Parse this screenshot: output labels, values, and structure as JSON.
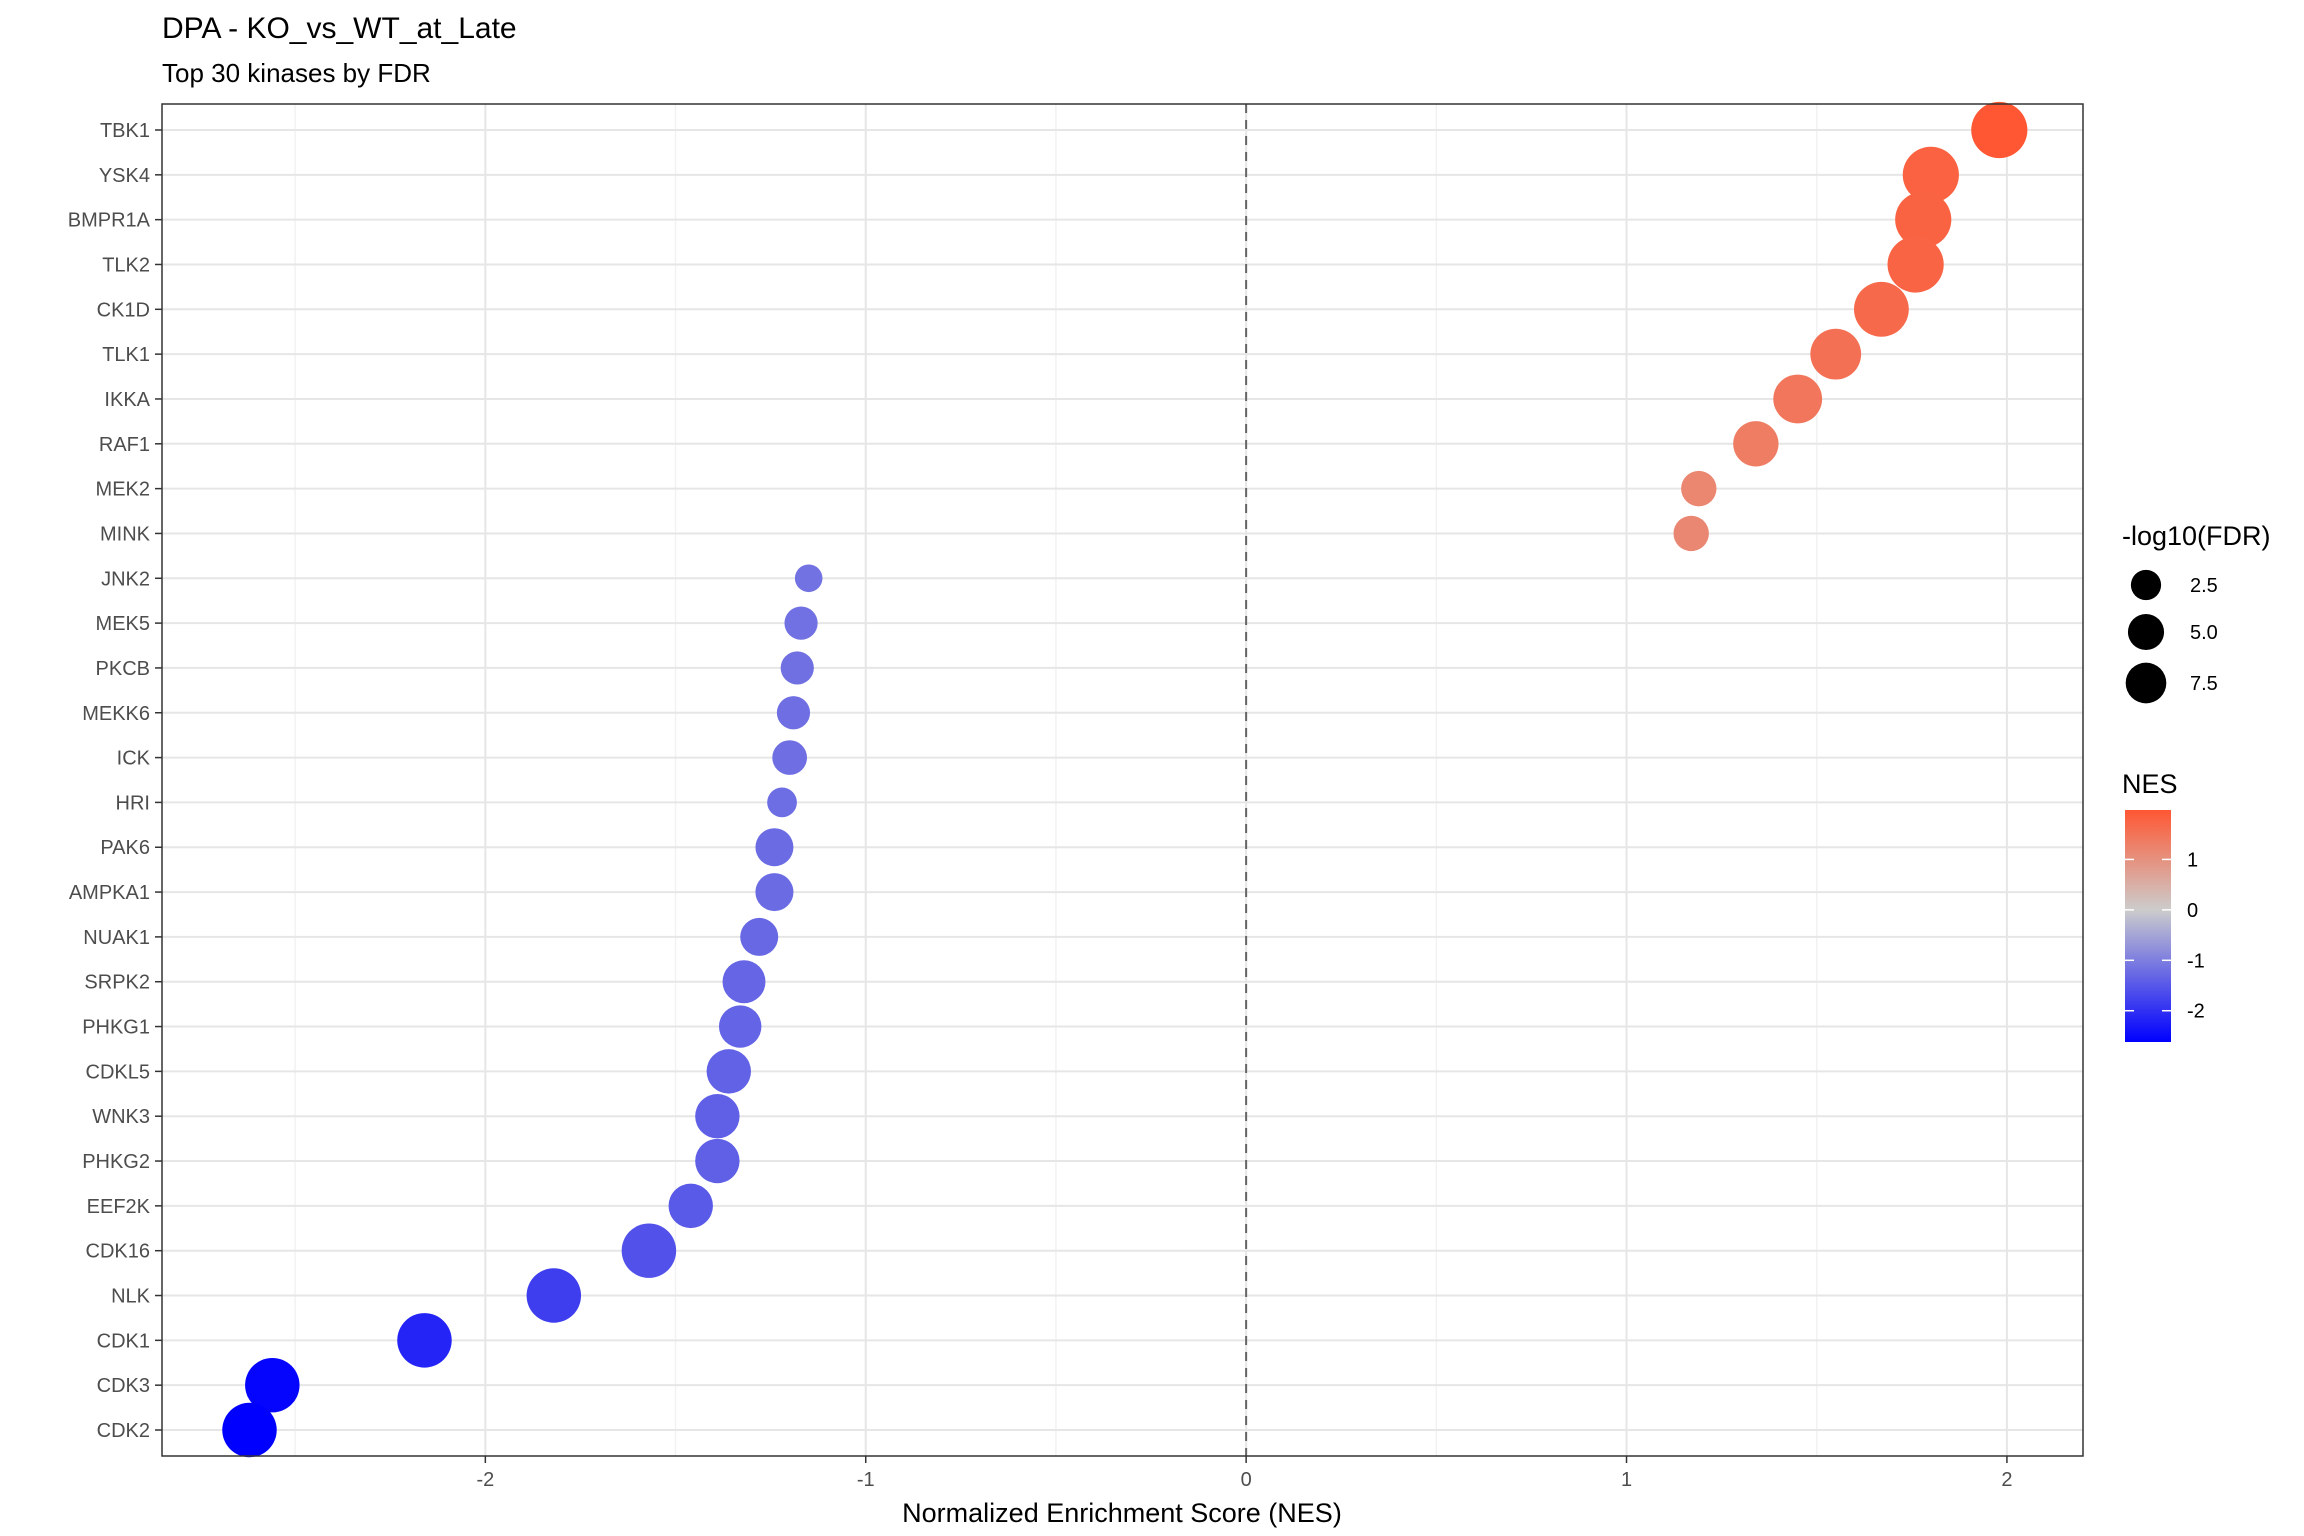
{
  "chart_data": {
    "type": "scatter",
    "title": "DPA - KO_vs_WT_at_Late",
    "subtitle": "Top 30 kinases by FDR",
    "xlabel": "Normalized Enrichment Score (NES)",
    "ylabel": "",
    "xlim": [
      -2.85,
      2.2
    ],
    "x_ticks": [
      -2,
      -1,
      0,
      1,
      2
    ],
    "grid": true,
    "reference_line": {
      "x": 0,
      "style": "dashed"
    },
    "categories": [
      "TBK1",
      "YSK4",
      "BMPR1A",
      "TLK2",
      "CK1D",
      "TLK1",
      "IKKA",
      "RAF1",
      "MEK2",
      "MINK",
      "JNK2",
      "MEK5",
      "PKCB",
      "MEKK6",
      "ICK",
      "HRI",
      "PAK6",
      "AMPKA1",
      "NUAK1",
      "SRPK2",
      "PHKG1",
      "CDKL5",
      "WNK3",
      "PHKG2",
      "EEF2K",
      "CDK16",
      "NLK",
      "CDK1",
      "CDK3",
      "CDK2"
    ],
    "points": [
      {
        "kinase": "TBK1",
        "nes": 1.98,
        "neg_log10_fdr": 6.0
      },
      {
        "kinase": "YSK4",
        "nes": 1.8,
        "neg_log10_fdr": 6.0
      },
      {
        "kinase": "BMPR1A",
        "nes": 1.78,
        "neg_log10_fdr": 6.0
      },
      {
        "kinase": "TLK2",
        "nes": 1.76,
        "neg_log10_fdr": 6.0
      },
      {
        "kinase": "CK1D",
        "nes": 1.67,
        "neg_log10_fdr": 5.6
      },
      {
        "kinase": "TLK1",
        "nes": 1.55,
        "neg_log10_fdr": 4.5
      },
      {
        "kinase": "IKKA",
        "nes": 1.45,
        "neg_log10_fdr": 4.0
      },
      {
        "kinase": "RAF1",
        "nes": 1.34,
        "neg_log10_fdr": 3.2
      },
      {
        "kinase": "MEK2",
        "nes": 1.19,
        "neg_log10_fdr": 1.4
      },
      {
        "kinase": "MINK",
        "nes": 1.17,
        "neg_log10_fdr": 1.4
      },
      {
        "kinase": "JNK2",
        "nes": -1.15,
        "neg_log10_fdr": 0.5
      },
      {
        "kinase": "MEK5",
        "nes": -1.17,
        "neg_log10_fdr": 1.1
      },
      {
        "kinase": "PKCB",
        "nes": -1.18,
        "neg_log10_fdr": 1.1
      },
      {
        "kinase": "MEKK6",
        "nes": -1.19,
        "neg_log10_fdr": 1.1
      },
      {
        "kinase": "ICK",
        "nes": -1.2,
        "neg_log10_fdr": 1.3
      },
      {
        "kinase": "HRI",
        "nes": -1.22,
        "neg_log10_fdr": 0.7
      },
      {
        "kinase": "PAK6",
        "nes": -1.24,
        "neg_log10_fdr": 1.8
      },
      {
        "kinase": "AMPKA1",
        "nes": -1.24,
        "neg_log10_fdr": 1.8
      },
      {
        "kinase": "NUAK1",
        "nes": -1.28,
        "neg_log10_fdr": 1.8
      },
      {
        "kinase": "SRPK2",
        "nes": -1.32,
        "neg_log10_fdr": 2.7
      },
      {
        "kinase": "PHKG1",
        "nes": -1.33,
        "neg_log10_fdr": 2.6
      },
      {
        "kinase": "CDKL5",
        "nes": -1.36,
        "neg_log10_fdr": 3.0
      },
      {
        "kinase": "WNK3",
        "nes": -1.39,
        "neg_log10_fdr": 3.0
      },
      {
        "kinase": "PHKG2",
        "nes": -1.39,
        "neg_log10_fdr": 3.0
      },
      {
        "kinase": "EEF2K",
        "nes": -1.46,
        "neg_log10_fdr": 3.0
      },
      {
        "kinase": "CDK16",
        "nes": -1.57,
        "neg_log10_fdr": 5.5
      },
      {
        "kinase": "NLK",
        "nes": -1.82,
        "neg_log10_fdr": 5.5
      },
      {
        "kinase": "CDK1",
        "nes": -2.16,
        "neg_log10_fdr": 5.5
      },
      {
        "kinase": "CDK3",
        "nes": -2.56,
        "neg_log10_fdr": 5.5
      },
      {
        "kinase": "CDK2",
        "nes": -2.62,
        "neg_log10_fdr": 5.5
      }
    ],
    "legend_size": {
      "title": "-log10(FDR)",
      "entries": [
        {
          "label": "2.5",
          "value": 2.5
        },
        {
          "label": "5.0",
          "value": 5.0
        },
        {
          "label": "7.5",
          "value": 7.5
        }
      ]
    },
    "legend_color": {
      "title": "NES",
      "ticks": [
        {
          "label": "1",
          "value": 1
        },
        {
          "label": "0",
          "value": 0
        },
        {
          "label": "-1",
          "value": -1
        },
        {
          "label": "-2",
          "value": -2
        }
      ],
      "range": [
        -2.62,
        1.98
      ],
      "low_color": "#0000ff",
      "mid_color": "#cccccc",
      "high_color": "#ff5733"
    },
    "legend_position": "right"
  }
}
